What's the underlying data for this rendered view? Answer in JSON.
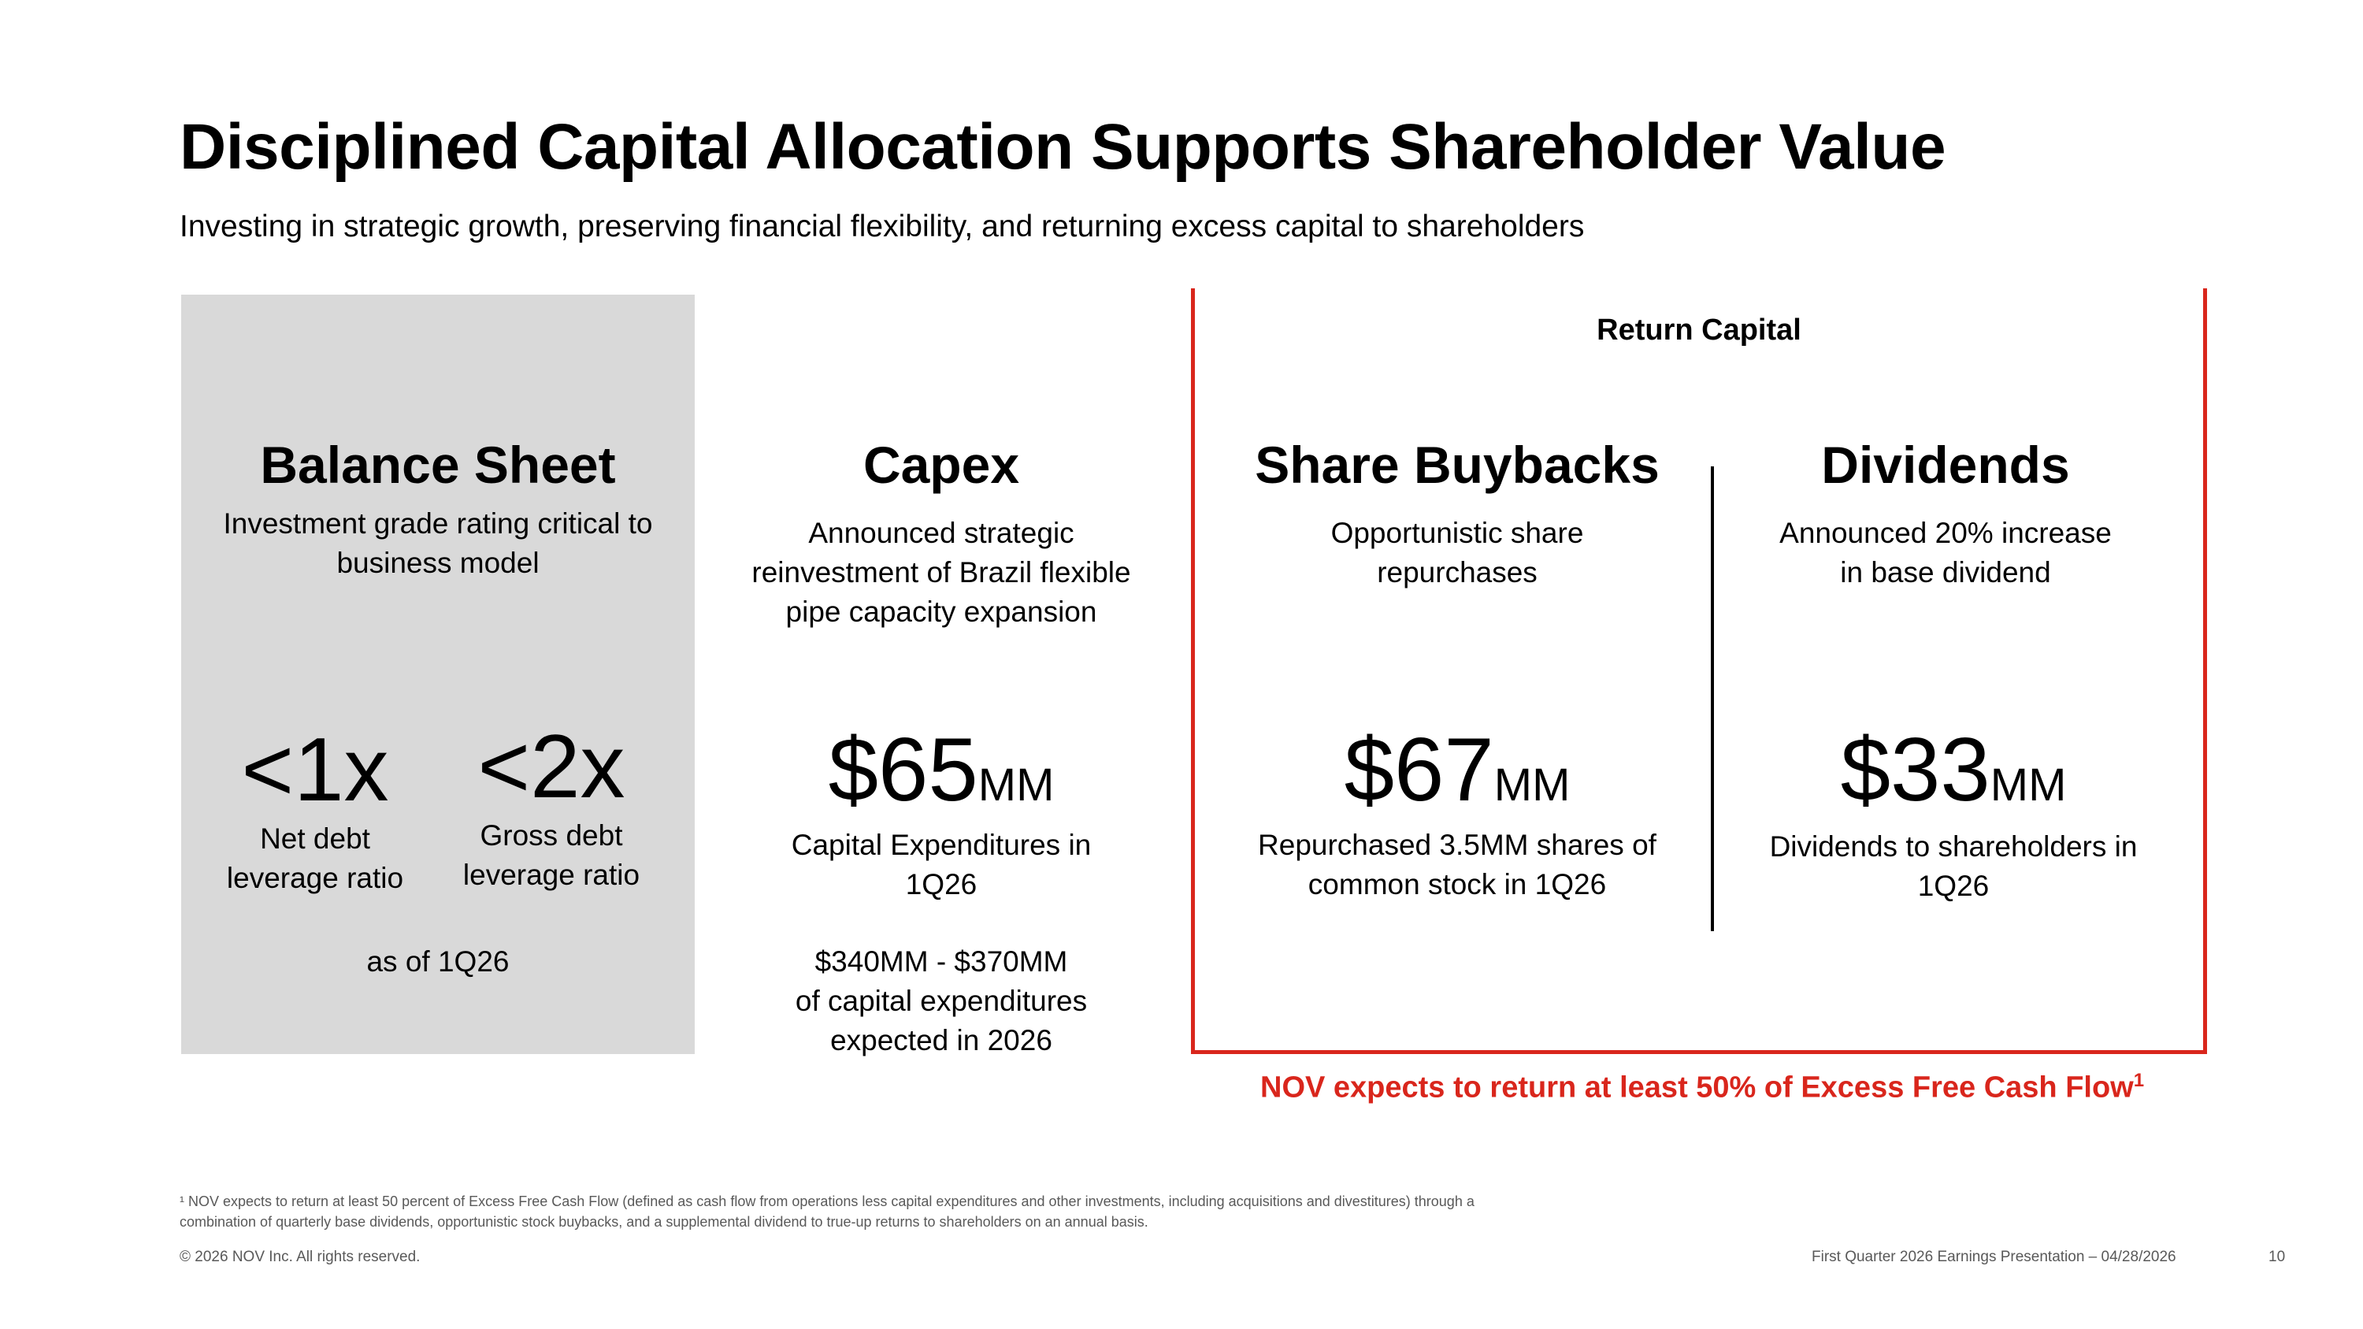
{
  "header": {
    "title": "Disciplined Capital Allocation Supports Shareholder Value",
    "subtitle": "Investing in strategic growth, preserving financial flexibility, and returning excess capital to shareholders"
  },
  "balance_sheet": {
    "heading": "Balance Sheet",
    "description": "Investment grade rating critical to business model",
    "net_value": "<1x",
    "net_caption": "Net debt leverage ratio",
    "gross_value": "<2x",
    "gross_caption": "Gross debt leverage ratio",
    "as_of": "as of 1Q26"
  },
  "capex": {
    "heading": "Capex",
    "description": "Announced strategic reinvestment of Brazil flexible pipe capacity expansion",
    "value": "$65",
    "unit": "MM",
    "caption": "Capital Expenditures in 1Q26",
    "outlook_range": "$340MM - $370MM",
    "outlook_caption": "of capital expenditures expected in 2026"
  },
  "return_capital": {
    "label": "Return Capital",
    "buybacks": {
      "heading": "Share Buybacks",
      "description": "Opportunistic share repurchases",
      "value": "$67",
      "unit": "MM",
      "caption": "Repurchased 3.5MM shares of common stock in 1Q26"
    },
    "dividends": {
      "heading": "Dividends",
      "description": "Announced 20% increase in base dividend",
      "value": "$33",
      "unit": "MM",
      "caption": "Dividends to shareholders in 1Q26"
    },
    "note": "NOV expects to return at least 50% of Excess Free Cash Flow",
    "note_marker": "1"
  },
  "footer": {
    "footnote": "¹ NOV expects to return at least 50 percent of Excess Free Cash Flow (defined as cash flow from operations less capital expenditures and other investments, including acquisitions and divestitures) through a combination of quarterly base dividends, opportunistic stock buybacks, and a supplemental dividend to true-up returns to shareholders on an annual basis.",
    "copyright": "© 2026 NOV Inc. All rights reserved.",
    "presentation": "First Quarter 2026 Earnings Presentation – 04/28/2026",
    "page_number": "10"
  },
  "colors": {
    "accent_red": "#d9261c",
    "panel_gray": "#d9d9d9"
  }
}
